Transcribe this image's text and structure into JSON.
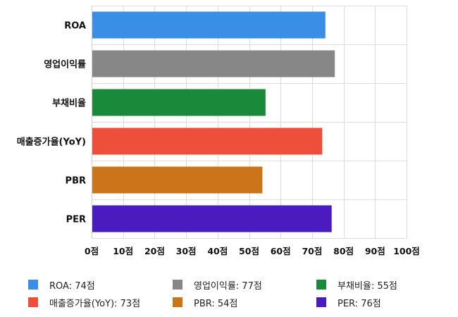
{
  "chart_data": {
    "type": "bar",
    "orientation": "horizontal",
    "categories": [
      "ROA",
      "영업이익률",
      "부채비율",
      "매출증가율(YoY)",
      "PBR",
      "PER"
    ],
    "values": [
      74,
      77,
      55,
      73,
      54,
      76
    ],
    "colors": [
      "#3a8ee6",
      "#878787",
      "#1a8a3a",
      "#ee4f3a",
      "#cc7419",
      "#4a1cbf"
    ],
    "xlim": [
      0,
      100
    ],
    "ticks": [
      0,
      10,
      20,
      30,
      40,
      50,
      60,
      70,
      80,
      90,
      100
    ],
    "tick_labels": [
      "0점",
      "10점",
      "20점",
      "30점",
      "40점",
      "50점",
      "60점",
      "70점",
      "80점",
      "90점",
      "100점"
    ],
    "grid": true,
    "legend_position": "bottom",
    "legend": [
      {
        "label": "ROA: 74점",
        "color": "#3a8ee6"
      },
      {
        "label": "영업이익률: 77점",
        "color": "#878787"
      },
      {
        "label": "부채비율: 55점",
        "color": "#1a8a3a"
      },
      {
        "label": "매출증가율(YoY): 73점",
        "color": "#ee4f3a"
      },
      {
        "label": "PBR: 54점",
        "color": "#cc7419"
      },
      {
        "label": "PER: 76점",
        "color": "#4a1cbf"
      }
    ]
  }
}
